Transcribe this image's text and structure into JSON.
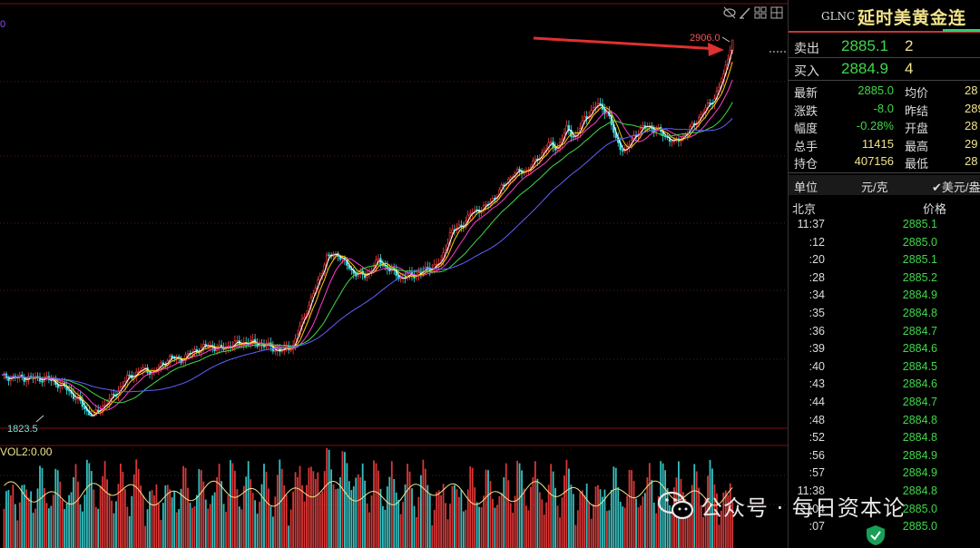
{
  "chart": {
    "high_label": "2906.0",
    "low_label": "1823.5",
    "vol_label": "VOL2:0.00",
    "candle_up_color": "#ff4040",
    "candle_down_color": "#3fe0e0",
    "ma_colors": [
      "#ffffff",
      "#ffd000",
      "#ff3fd0",
      "#3fd84a",
      "#6060ff"
    ],
    "arrow_color": "#e03030"
  },
  "chart_data": {
    "type": "candlestick",
    "price_high": 2906.0,
    "price_low": 1823.5,
    "trend_points": [
      [
        0,
        1935
      ],
      [
        10,
        1932
      ],
      [
        20,
        1930
      ],
      [
        28,
        1905
      ],
      [
        34,
        1870
      ],
      [
        38,
        1835
      ],
      [
        41,
        1823.5
      ],
      [
        45,
        1850
      ],
      [
        50,
        1880
      ],
      [
        56,
        1930
      ],
      [
        62,
        1955
      ],
      [
        68,
        1950
      ],
      [
        75,
        1990
      ],
      [
        80,
        1985
      ],
      [
        86,
        2010
      ],
      [
        92,
        2025
      ],
      [
        98,
        2015
      ],
      [
        104,
        2030
      ],
      [
        110,
        2035
      ],
      [
        118,
        2025
      ],
      [
        124,
        2010
      ],
      [
        130,
        2025
      ],
      [
        134,
        2095
      ],
      [
        140,
        2190
      ],
      [
        145,
        2280
      ],
      [
        150,
        2290
      ],
      [
        156,
        2240
      ],
      [
        162,
        2225
      ],
      [
        168,
        2270
      ],
      [
        172,
        2250
      ],
      [
        178,
        2220
      ],
      [
        185,
        2230
      ],
      [
        190,
        2245
      ],
      [
        196,
        2265
      ],
      [
        200,
        2350
      ],
      [
        205,
        2370
      ],
      [
        210,
        2410
      ],
      [
        216,
        2425
      ],
      [
        222,
        2470
      ],
      [
        228,
        2520
      ],
      [
        234,
        2530
      ],
      [
        238,
        2555
      ],
      [
        244,
        2605
      ],
      [
        248,
        2595
      ],
      [
        252,
        2650
      ],
      [
        256,
        2625
      ],
      [
        260,
        2680
      ],
      [
        266,
        2720
      ],
      [
        270,
        2700
      ],
      [
        274,
        2620
      ],
      [
        278,
        2580
      ],
      [
        282,
        2630
      ],
      [
        288,
        2660
      ],
      [
        294,
        2640
      ],
      [
        300,
        2610
      ],
      [
        306,
        2640
      ],
      [
        312,
        2690
      ],
      [
        318,
        2740
      ],
      [
        322,
        2800
      ],
      [
        324,
        2860
      ],
      [
        326,
        2906.0
      ]
    ],
    "volume_values": [
      40,
      48,
      55,
      50,
      45,
      60,
      52,
      48,
      58,
      62,
      55,
      50,
      47,
      65,
      58,
      52,
      60,
      72,
      68,
      55,
      50,
      62,
      58,
      55,
      70,
      66,
      60,
      52,
      58,
      64,
      56,
      50,
      60,
      75,
      70,
      62,
      55,
      58,
      80,
      72,
      68,
      60,
      56,
      62,
      70,
      66,
      74,
      60,
      55,
      62,
      58,
      54,
      60,
      72,
      66,
      58,
      52,
      56,
      62,
      70,
      76,
      68,
      60,
      64
    ]
  },
  "panel": {
    "symbol": "GLNC",
    "name": "延时美黄金连",
    "ask": {
      "label": "卖出",
      "price": "2885.1",
      "vol": "2"
    },
    "bid": {
      "label": "买入",
      "price": "2884.9",
      "vol": "4"
    },
    "stats": [
      {
        "l1": "最新",
        "v1": "2885.0",
        "c1": "#3fd84a",
        "l2": "均价",
        "v2": "28"
      },
      {
        "l1": "涨跌",
        "v1": "-8.0",
        "c1": "#3fd84a",
        "l2": "昨结",
        "v2": "289"
      },
      {
        "l1": "幅度",
        "v1": "-0.28%",
        "c1": "#3fd84a",
        "l2": "开盘",
        "v2": "28"
      },
      {
        "l1": "总手",
        "v1": "11415",
        "c1": "#f2e48a",
        "l2": "最高",
        "v2": "29"
      },
      {
        "l1": "持仓",
        "v1": "407156",
        "c1": "#f2e48a",
        "l2": "最低",
        "v2": "28"
      }
    ],
    "unit": {
      "label": "单位",
      "opt1": "元/克",
      "opt2": "✔美元/盎"
    },
    "table_header": {
      "time": "北京",
      "price": "价格"
    },
    "ticks": [
      {
        "t": "11:37",
        "p": "2885.1"
      },
      {
        "t": ":12",
        "p": "2885.0"
      },
      {
        "t": ":20",
        "p": "2885.1"
      },
      {
        "t": ":28",
        "p": "2885.2"
      },
      {
        "t": ":34",
        "p": "2884.9"
      },
      {
        "t": ":35",
        "p": "2884.8"
      },
      {
        "t": ":36",
        "p": "2884.7"
      },
      {
        "t": ":39",
        "p": "2884.6"
      },
      {
        "t": ":40",
        "p": "2884.5"
      },
      {
        "t": ":43",
        "p": "2884.6"
      },
      {
        "t": ":44",
        "p": "2884.7"
      },
      {
        "t": ":48",
        "p": "2884.8"
      },
      {
        "t": ":52",
        "p": "2884.8"
      },
      {
        "t": ":56",
        "p": "2884.9"
      },
      {
        "t": ":57",
        "p": "2884.9"
      },
      {
        "t": "11:38",
        "p": "2884.8"
      },
      {
        "t": ":04",
        "p": "2885.0"
      },
      {
        "t": ":07",
        "p": "2885.0"
      }
    ]
  },
  "watermark": "公众号 · 每日资本论"
}
